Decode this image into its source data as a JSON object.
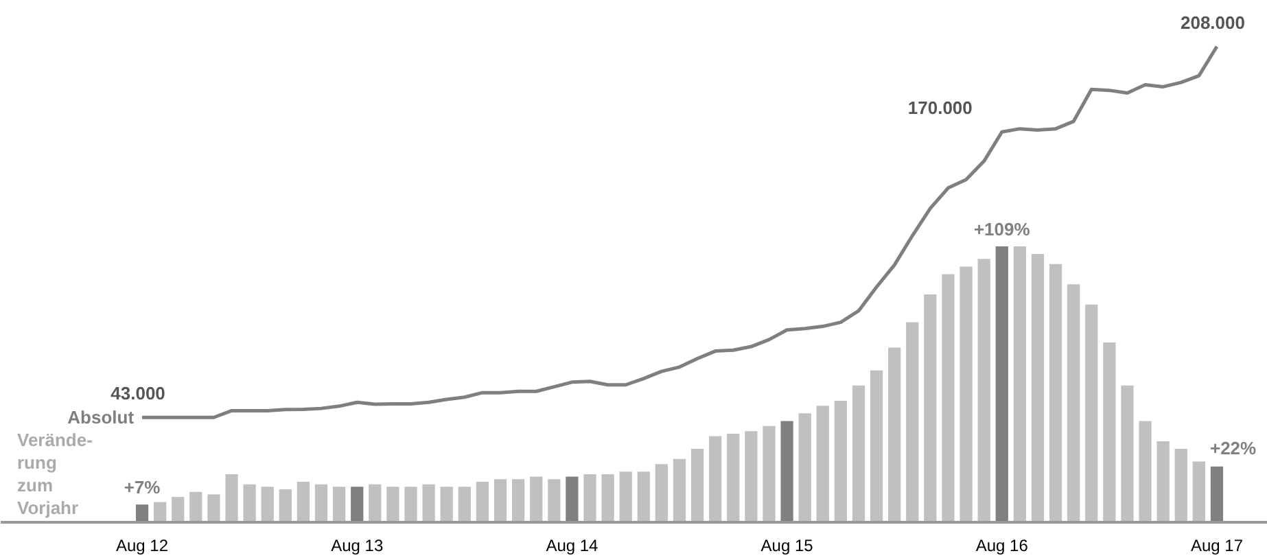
{
  "chart_data": {
    "type": "bar",
    "categories": [
      "Aug 12",
      null,
      null,
      null,
      null,
      null,
      null,
      null,
      null,
      null,
      null,
      null,
      "Aug 13",
      null,
      null,
      null,
      null,
      null,
      null,
      null,
      null,
      null,
      null,
      null,
      "Aug 14",
      null,
      null,
      null,
      null,
      null,
      null,
      null,
      null,
      null,
      null,
      null,
      "Aug 15",
      null,
      null,
      null,
      null,
      null,
      null,
      null,
      null,
      null,
      null,
      null,
      "Aug 16",
      null,
      null,
      null,
      null,
      null,
      null,
      null,
      null,
      null,
      null,
      null,
      "Aug 17"
    ],
    "series": [
      {
        "name": "Verände-\nrung\nzum\nVorjahr",
        "colors": [
          "#808080",
          "#c0c0c0",
          "#c0c0c0",
          "#c0c0c0",
          "#c0c0c0",
          "#c0c0c0",
          "#c0c0c0",
          "#c0c0c0",
          "#c0c0c0",
          "#c0c0c0",
          "#c0c0c0",
          "#c0c0c0",
          "#808080",
          "#c0c0c0",
          "#c0c0c0",
          "#c0c0c0",
          "#c0c0c0",
          "#c0c0c0",
          "#c0c0c0",
          "#c0c0c0",
          "#c0c0c0",
          "#c0c0c0",
          "#c0c0c0",
          "#c0c0c0",
          "#808080",
          "#c0c0c0",
          "#c0c0c0",
          "#c0c0c0",
          "#c0c0c0",
          "#c0c0c0",
          "#c0c0c0",
          "#c0c0c0",
          "#c0c0c0",
          "#c0c0c0",
          "#c0c0c0",
          "#c0c0c0",
          "#808080",
          "#c0c0c0",
          "#c0c0c0",
          "#c0c0c0",
          "#c0c0c0",
          "#c0c0c0",
          "#c0c0c0",
          "#c0c0c0",
          "#c0c0c0",
          "#c0c0c0",
          "#c0c0c0",
          "#c0c0c0",
          "#808080",
          "#c0c0c0",
          "#c0c0c0",
          "#c0c0c0",
          "#c0c0c0",
          "#c0c0c0",
          "#c0c0c0",
          "#c0c0c0",
          "#c0c0c0",
          "#c0c0c0",
          "#c0c0c0",
          "#c0c0c0",
          "#808080"
        ],
        "values": [
          7,
          8,
          10,
          12,
          11,
          19,
          15,
          14,
          13,
          16,
          15,
          14,
          14,
          15,
          14,
          14,
          15,
          14,
          14,
          16,
          17,
          17,
          18,
          17,
          18,
          19,
          19,
          20,
          20,
          23,
          25,
          29,
          34,
          35,
          36,
          38,
          40,
          43,
          46,
          48,
          54,
          60,
          69,
          79,
          90,
          98,
          101,
          104,
          109,
          109,
          106,
          102,
          94,
          86,
          71,
          54,
          40,
          32,
          29,
          24,
          22
        ],
        "value_labels": [
          "+7%",
          null,
          null,
          null,
          null,
          null,
          null,
          null,
          null,
          null,
          null,
          null,
          null,
          null,
          null,
          null,
          null,
          null,
          null,
          null,
          null,
          null,
          null,
          null,
          null,
          null,
          null,
          null,
          null,
          null,
          null,
          null,
          null,
          null,
          null,
          null,
          null,
          null,
          null,
          null,
          null,
          null,
          null,
          null,
          null,
          null,
          null,
          null,
          "+109%",
          null,
          null,
          null,
          null,
          null,
          null,
          null,
          null,
          null,
          null,
          null,
          "+22%"
        ]
      },
      {
        "type": "line",
        "axis": "y2",
        "name": "Absolut",
        "color": "#7f7f7f",
        "values": [
          43000,
          43000,
          43000,
          43000,
          43000,
          46000,
          46000,
          46000,
          46500,
          46600,
          47000,
          48000,
          49700,
          48900,
          49000,
          49000,
          49700,
          51000,
          52000,
          54000,
          54000,
          54600,
          54600,
          56600,
          58700,
          59000,
          57500,
          57500,
          60300,
          63500,
          65400,
          69200,
          72500,
          72900,
          74500,
          77600,
          81900,
          82500,
          83500,
          85300,
          90400,
          101000,
          110800,
          123800,
          136000,
          145100,
          148800,
          157000,
          170000,
          171400,
          170800,
          171400,
          174700,
          188900,
          188500,
          187300,
          191000,
          190100,
          192000,
          195000,
          208000
        ],
        "value_labels": [
          "43.000",
          null,
          null,
          null,
          null,
          null,
          null,
          null,
          null,
          null,
          null,
          null,
          null,
          null,
          null,
          null,
          null,
          null,
          null,
          null,
          null,
          null,
          null,
          null,
          null,
          null,
          null,
          null,
          null,
          null,
          null,
          null,
          null,
          null,
          null,
          null,
          null,
          null,
          null,
          null,
          null,
          null,
          null,
          null,
          null,
          null,
          null,
          null,
          "170.000",
          null,
          null,
          null,
          null,
          null,
          null,
          null,
          null,
          null,
          null,
          null,
          "208.000"
        ]
      }
    ]
  }
}
